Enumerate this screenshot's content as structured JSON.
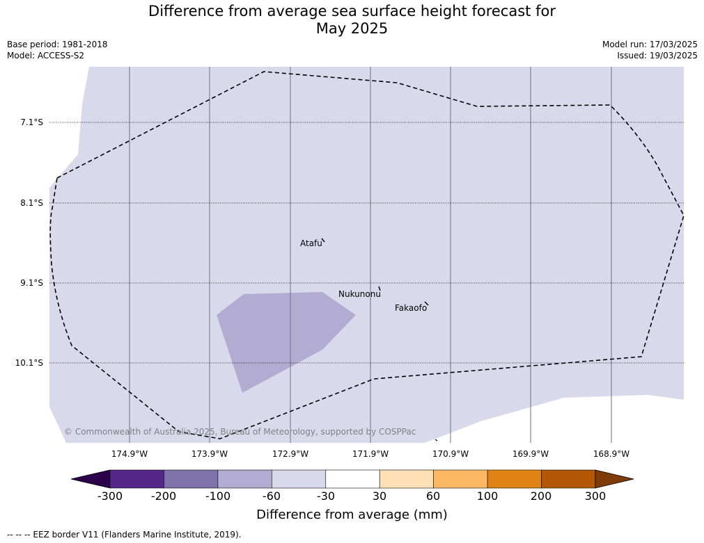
{
  "title_line1": "Difference from average sea surface height forecast for",
  "title_line2": "May 2025",
  "base_period": "Base period: 1981-2018",
  "model": "Model: ACCESS-S2",
  "model_run": "Model run: 17/03/2025",
  "issued": "Issued: 19/03/2025",
  "lat_labels": [
    "7.1°S",
    "8.1°S",
    "9.1°S",
    "10.1°S"
  ],
  "lon_labels": [
    "174.9°W",
    "173.9°W",
    "172.9°W",
    "171.9°W",
    "170.9°W",
    "169.9°W",
    "168.9°W"
  ],
  "places": [
    "Atafu",
    "Nukunonu",
    "Fakaofo"
  ],
  "copyright": "© Commonwealth of Australia 2025, Bureau of Meteorology, supported by COSPPac",
  "colorbar": {
    "ticks": [
      "-300",
      "-200",
      "-100",
      "-60",
      "-30",
      "30",
      "60",
      "100",
      "200",
      "300"
    ],
    "colors": [
      "#2d004b",
      "#542788",
      "#8073ac",
      "#b2abd2",
      "#d8daeb",
      "#ffffff",
      "#fee0b6",
      "#fdb863",
      "#e08214",
      "#b35806",
      "#7f3b08"
    ],
    "label": "Difference from average (mm)"
  },
  "footer": "--  --  -- EEZ border V11 (Flanders Marine Institute, 2019)."
}
